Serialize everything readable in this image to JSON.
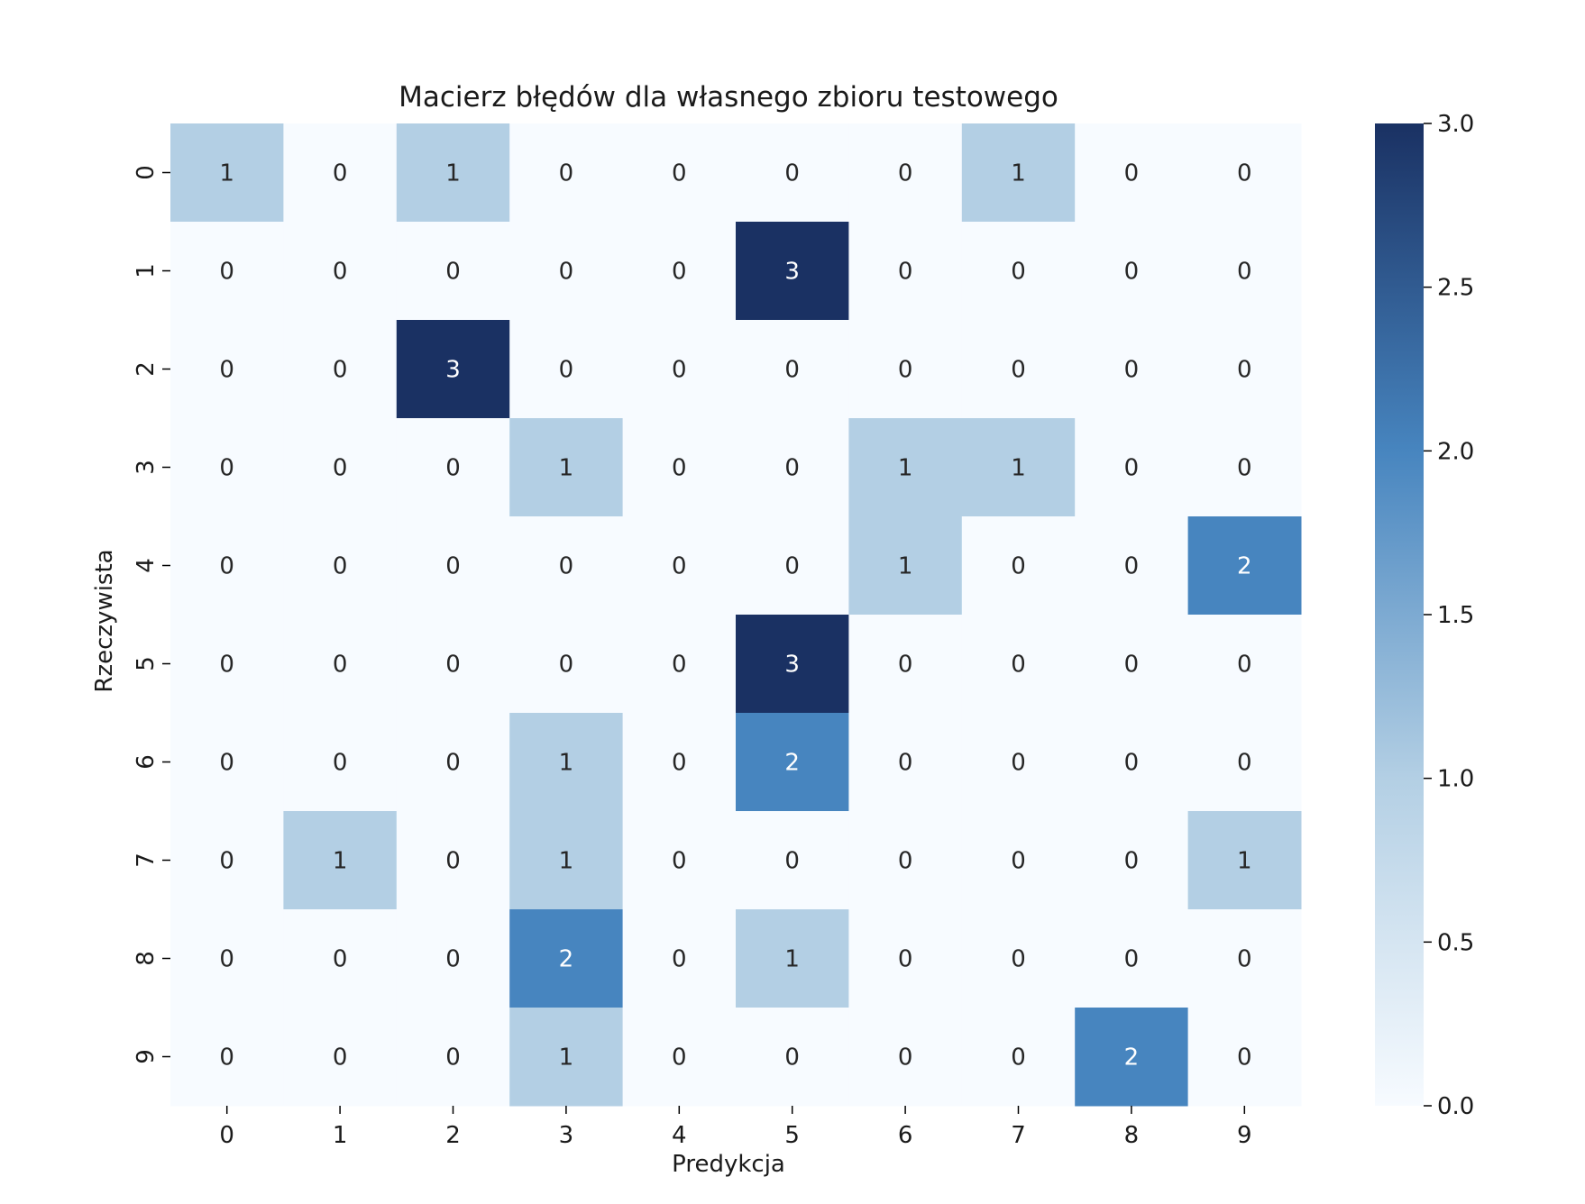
{
  "chart_data": {
    "type": "heatmap",
    "title": "Macierz błędów dla własnego zbioru testowego",
    "xlabel": "Predykcja",
    "ylabel": "Rzeczywista",
    "x_categories": [
      "0",
      "1",
      "2",
      "3",
      "4",
      "5",
      "6",
      "7",
      "8",
      "9"
    ],
    "y_categories": [
      "0",
      "1",
      "2",
      "3",
      "4",
      "5",
      "6",
      "7",
      "8",
      "9"
    ],
    "values": [
      [
        1,
        0,
        1,
        0,
        0,
        0,
        0,
        1,
        0,
        0
      ],
      [
        0,
        0,
        0,
        0,
        0,
        3,
        0,
        0,
        0,
        0
      ],
      [
        0,
        0,
        3,
        0,
        0,
        0,
        0,
        0,
        0,
        0
      ],
      [
        0,
        0,
        0,
        1,
        0,
        0,
        1,
        1,
        0,
        0
      ],
      [
        0,
        0,
        0,
        0,
        0,
        0,
        1,
        0,
        0,
        2
      ],
      [
        0,
        0,
        0,
        0,
        0,
        3,
        0,
        0,
        0,
        0
      ],
      [
        0,
        0,
        0,
        1,
        0,
        2,
        0,
        0,
        0,
        0
      ],
      [
        0,
        1,
        0,
        1,
        0,
        0,
        0,
        0,
        0,
        1
      ],
      [
        0,
        0,
        0,
        2,
        0,
        1,
        0,
        0,
        0,
        0
      ],
      [
        0,
        0,
        0,
        1,
        0,
        0,
        0,
        0,
        2,
        0
      ]
    ],
    "value_range": [
      0,
      3
    ],
    "colormap": "Blues",
    "color_stops": [
      "#f7fbff",
      "#b3cfe4",
      "#4785bf",
      "#1a3163"
    ],
    "colorbar": {
      "ticks": [
        "0.0",
        "0.5",
        "1.0",
        "1.5",
        "2.0",
        "2.5",
        "3.0"
      ],
      "tick_values": [
        0,
        0.5,
        1.0,
        1.5,
        2.0,
        2.5,
        3.0
      ],
      "placement": "right"
    },
    "annotations": true
  }
}
